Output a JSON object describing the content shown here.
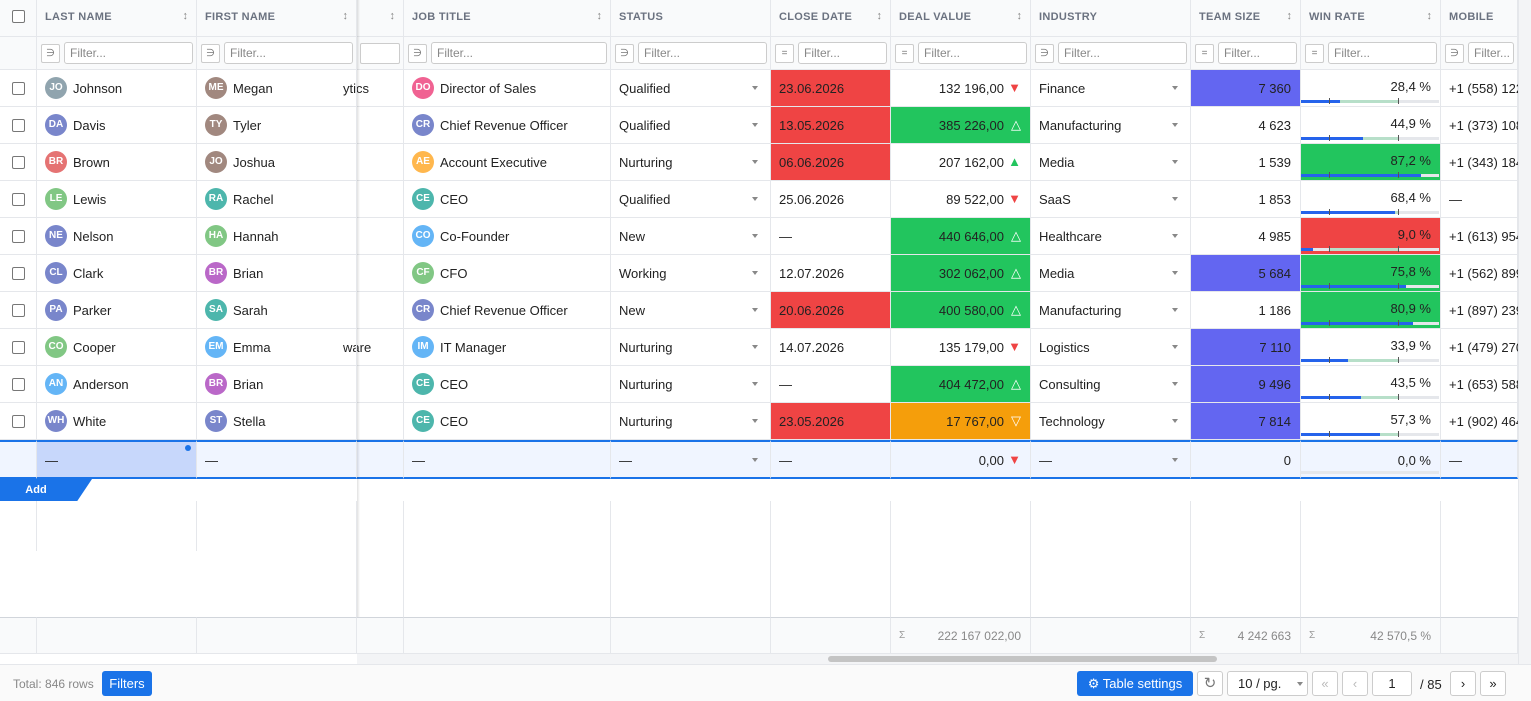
{
  "columns": [
    {
      "label": "LAST NAME",
      "sort": "↕"
    },
    {
      "label": "FIRST NAME",
      "sort": "↕"
    },
    {
      "sort": "↕"
    },
    {
      "label": "JOB TITLE",
      "sort": "↕"
    },
    {
      "label": "STATUS"
    },
    {
      "label": "CLOSE DATE",
      "sort": "↕"
    },
    {
      "label": "DEAL VALUE",
      "sort": "↕"
    },
    {
      "label": "INDUSTRY"
    },
    {
      "label": "TEAM SIZE",
      "sort": "↕"
    },
    {
      "label": "WIN RATE",
      "sort": "↕"
    },
    {
      "label": "MOBILE"
    }
  ],
  "filters": [
    {
      "op": "∋",
      "placeholder": "Filter..."
    },
    {
      "op": "∋",
      "placeholder": "Filter..."
    },
    null,
    {
      "op": "∋",
      "placeholder": "Filter..."
    },
    {
      "op": "∋",
      "placeholder": "Filter..."
    },
    {
      "op": "=",
      "placeholder": "Filter..."
    },
    {
      "op": "=",
      "placeholder": "Filter..."
    },
    {
      "op": "∋",
      "placeholder": "Filter..."
    },
    {
      "op": "=",
      "placeholder": "Filter..."
    },
    {
      "op": "=",
      "placeholder": "Filter..."
    },
    {
      "op": "∋",
      "placeholder": "Filter..."
    }
  ],
  "rows": [
    {
      "last": {
        "initials": "JO",
        "name": "Johnson",
        "color": "#90a4ae"
      },
      "first": {
        "initials": "ME",
        "name": "Megan",
        "color": "#a1887f"
      },
      "hidden": "ytics",
      "job": {
        "initials": "DO",
        "name": "Director of Sales",
        "color": "#f06292"
      },
      "status": "Qualified",
      "close": "23.06.2026",
      "close_bg": "#ef4444",
      "deal": "132 196,00",
      "trend": "▼",
      "trend_color": "#ef4444",
      "industry": "Finance",
      "team": "7 360",
      "team_bg": "#6366f1",
      "win": "28,4 %",
      "mobile": "+1 (558) 122"
    },
    {
      "last": {
        "initials": "DA",
        "name": "Davis",
        "color": "#7986cb"
      },
      "first": {
        "initials": "TY",
        "name": "Tyler",
        "color": "#a1887f"
      },
      "job": {
        "initials": "CR",
        "name": "Chief Revenue Officer",
        "color": "#7986cb"
      },
      "status": "Qualified",
      "close": "13.05.2026",
      "close_bg": "#ef4444",
      "deal": "385 226,00",
      "deal_bg": "#22c55e",
      "trend": "△",
      "trend_color": "#ffffff",
      "industry": "Manufacturing",
      "team": "4 623",
      "win": "44,9 %",
      "mobile": "+1 (373) 108"
    },
    {
      "last": {
        "initials": "BR",
        "name": "Brown",
        "color": "#e57373"
      },
      "first": {
        "initials": "JO",
        "name": "Joshua",
        "color": "#a1887f"
      },
      "job": {
        "initials": "AE",
        "name": "Account Executive",
        "color": "#ffb74d"
      },
      "status": "Nurturing",
      "close": "06.06.2026",
      "close_bg": "#ef4444",
      "deal": "207 162,00",
      "trend": "▲",
      "trend_color": "#22c55e",
      "industry": "Media",
      "team": "1 539",
      "win": "87,2 %",
      "win_bg": "#22c55e",
      "mobile": "+1 (343) 184"
    },
    {
      "last": {
        "initials": "LE",
        "name": "Lewis",
        "color": "#81c784"
      },
      "first": {
        "initials": "RA",
        "name": "Rachel",
        "color": "#4db6ac"
      },
      "job": {
        "initials": "CE",
        "name": "CEO",
        "color": "#4db6ac"
      },
      "status": "Qualified",
      "close": "25.06.2026",
      "deal": "89 522,00",
      "trend": "▼",
      "trend_color": "#ef4444",
      "industry": "SaaS",
      "team": "1 853",
      "win": "68,4 %",
      "mobile": "—"
    },
    {
      "last": {
        "initials": "NE",
        "name": "Nelson",
        "color": "#7986cb"
      },
      "first": {
        "initials": "HA",
        "name": "Hannah",
        "color": "#81c784"
      },
      "job": {
        "initials": "CO",
        "name": "Co-Founder",
        "color": "#64b5f6"
      },
      "status": "New",
      "close": "—",
      "deal": "440 646,00",
      "deal_bg": "#22c55e",
      "trend": "△",
      "trend_color": "#ffffff",
      "industry": "Healthcare",
      "team": "4 985",
      "win": "9,0 %",
      "win_bg": "#ef4444",
      "mobile": "+1 (613) 954"
    },
    {
      "last": {
        "initials": "CL",
        "name": "Clark",
        "color": "#7986cb"
      },
      "first": {
        "initials": "BR",
        "name": "Brian",
        "color": "#ba68c8"
      },
      "job": {
        "initials": "CF",
        "name": "CFO",
        "color": "#81c784"
      },
      "status": "Working",
      "close": "12.07.2026",
      "deal": "302 062,00",
      "deal_bg": "#22c55e",
      "trend": "△",
      "trend_color": "#ffffff",
      "industry": "Media",
      "team": "5 684",
      "team_bg": "#6366f1",
      "win": "75,8 %",
      "win_bg": "#22c55e",
      "mobile": "+1 (562) 899"
    },
    {
      "last": {
        "initials": "PA",
        "name": "Parker",
        "color": "#7986cb"
      },
      "first": {
        "initials": "SA",
        "name": "Sarah",
        "color": "#4db6ac"
      },
      "job": {
        "initials": "CR",
        "name": "Chief Revenue Officer",
        "color": "#7986cb"
      },
      "status": "New",
      "close": "20.06.2026",
      "close_bg": "#ef4444",
      "deal": "400 580,00",
      "deal_bg": "#22c55e",
      "trend": "△",
      "trend_color": "#ffffff",
      "industry": "Manufacturing",
      "team": "1 186",
      "win": "80,9 %",
      "win_bg": "#22c55e",
      "mobile": "+1 (897) 239"
    },
    {
      "last": {
        "initials": "CO",
        "name": "Cooper",
        "color": "#81c784"
      },
      "first": {
        "initials": "EM",
        "name": "Emma",
        "color": "#64b5f6"
      },
      "hidden": "ware",
      "job": {
        "initials": "IM",
        "name": "IT Manager",
        "color": "#64b5f6"
      },
      "status": "Nurturing",
      "close": "14.07.2026",
      "deal": "135 179,00",
      "trend": "▼",
      "trend_color": "#ef4444",
      "industry": "Logistics",
      "team": "7 110",
      "team_bg": "#6366f1",
      "win": "33,9 %",
      "mobile": "+1 (479) 270"
    },
    {
      "last": {
        "initials": "AN",
        "name": "Anderson",
        "color": "#64b5f6"
      },
      "first": {
        "initials": "BR",
        "name": "Brian",
        "color": "#ba68c8"
      },
      "job": {
        "initials": "CE",
        "name": "CEO",
        "color": "#4db6ac"
      },
      "status": "Nurturing",
      "close": "—",
      "deal": "404 472,00",
      "deal_bg": "#22c55e",
      "trend": "△",
      "trend_color": "#ffffff",
      "industry": "Consulting",
      "team": "9 496",
      "team_bg": "#6366f1",
      "win": "43,5 %",
      "mobile": "+1 (653) 588"
    },
    {
      "last": {
        "initials": "WH",
        "name": "White",
        "color": "#7986cb"
      },
      "first": {
        "initials": "ST",
        "name": "Stella",
        "color": "#7986cb"
      },
      "job": {
        "initials": "CE",
        "name": "CEO",
        "color": "#4db6ac"
      },
      "status": "Nurturing",
      "close": "23.05.2026",
      "close_bg": "#ef4444",
      "deal": "17 767,00",
      "deal_bg": "#f59e0b",
      "trend": "▽",
      "trend_color": "#ffffff",
      "industry": "Technology",
      "team": "7 814",
      "team_bg": "#6366f1",
      "win": "57,3 %",
      "mobile": "+1 (902) 464"
    }
  ],
  "new_row": {
    "last": "—",
    "first": "—",
    "job": "—",
    "status": "—",
    "close": "—",
    "deal": "0,00",
    "trend": "▼",
    "industry": "—",
    "team": "0",
    "win": "0,0 %",
    "mobile": "—"
  },
  "add_button": "Add",
  "totals": {
    "sigma": "Σ",
    "deal": "222 167 022,00",
    "team": "4 242 663",
    "win": "42 570,5 %"
  },
  "footer": {
    "total": "Total: 846 rows",
    "filters": "Filters",
    "settings": "⚙ Table settings",
    "refresh": "↻",
    "page_size": "10 / pg.",
    "first": "«",
    "prev": "‹",
    "page": "1",
    "of": "/ 85",
    "next": "›",
    "last": "»"
  }
}
